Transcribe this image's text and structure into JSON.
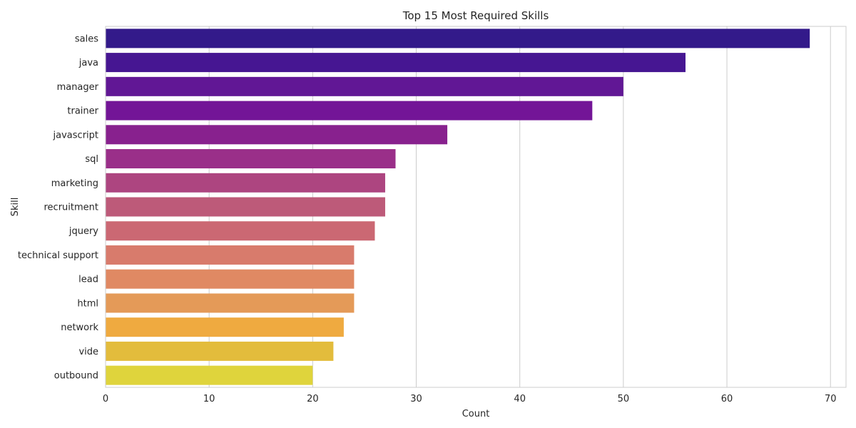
{
  "chart_data": {
    "type": "bar",
    "orientation": "horizontal",
    "title": "Top 15 Most Required Skills",
    "xlabel": "Count",
    "ylabel": "Skill",
    "xlim": [
      0,
      71.5
    ],
    "xticks": [
      0,
      10,
      20,
      30,
      40,
      50,
      60,
      70
    ],
    "grid": true,
    "categories": [
      "sales",
      "java",
      "manager",
      "trainer",
      "javascript",
      "sql",
      "marketing",
      "recruitment",
      "jquery",
      "technical support",
      "lead",
      "html",
      "network",
      "vide",
      "outbound"
    ],
    "values": [
      68,
      56,
      50,
      47,
      33,
      28,
      27,
      27,
      26,
      24,
      24,
      24,
      23,
      22,
      20
    ],
    "colors": [
      "#331a8a",
      "#461692",
      "#611795",
      "#731597",
      "#88218e",
      "#9a2f89",
      "#ad4580",
      "#bd5a79",
      "#cb6873",
      "#d87b6c",
      "#e08963",
      "#e49a58",
      "#efaa40",
      "#e3bc3c",
      "#dfd43c"
    ]
  }
}
